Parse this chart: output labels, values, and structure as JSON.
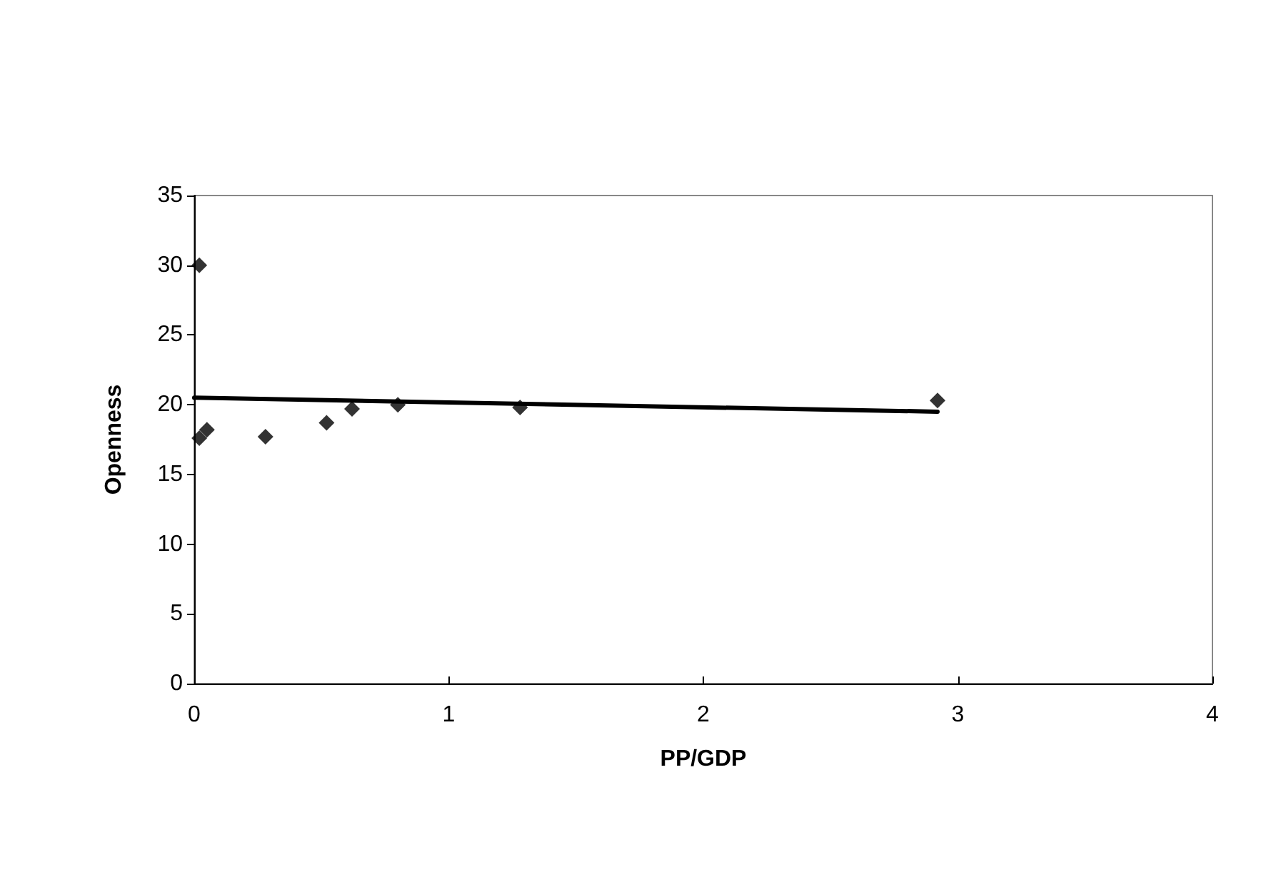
{
  "chart_data": {
    "type": "scatter",
    "xlabel": "PP/GDP",
    "ylabel": "Openness",
    "xlim": [
      0,
      4
    ],
    "xticks": [
      0,
      1,
      2,
      3,
      4
    ],
    "ylim": [
      0,
      35
    ],
    "yticks": [
      0,
      5,
      10,
      15,
      20,
      25,
      30,
      35
    ],
    "grid": false,
    "marker": "diamond",
    "series": [
      {
        "type": "scatter",
        "color": "#000000",
        "x": [
          0.02,
          0.02,
          0.05,
          0.28,
          0.52,
          0.62,
          0.8,
          1.28,
          2.92
        ],
        "values": [
          30.0,
          17.6,
          18.2,
          17.7,
          18.7,
          19.7,
          20.0,
          19.8,
          20.3
        ]
      },
      {
        "type": "line",
        "color": "#000000",
        "marker": "none",
        "line_style": "solid",
        "x": [
          0,
          2.92
        ],
        "values": [
          20.5,
          19.5
        ]
      }
    ]
  }
}
